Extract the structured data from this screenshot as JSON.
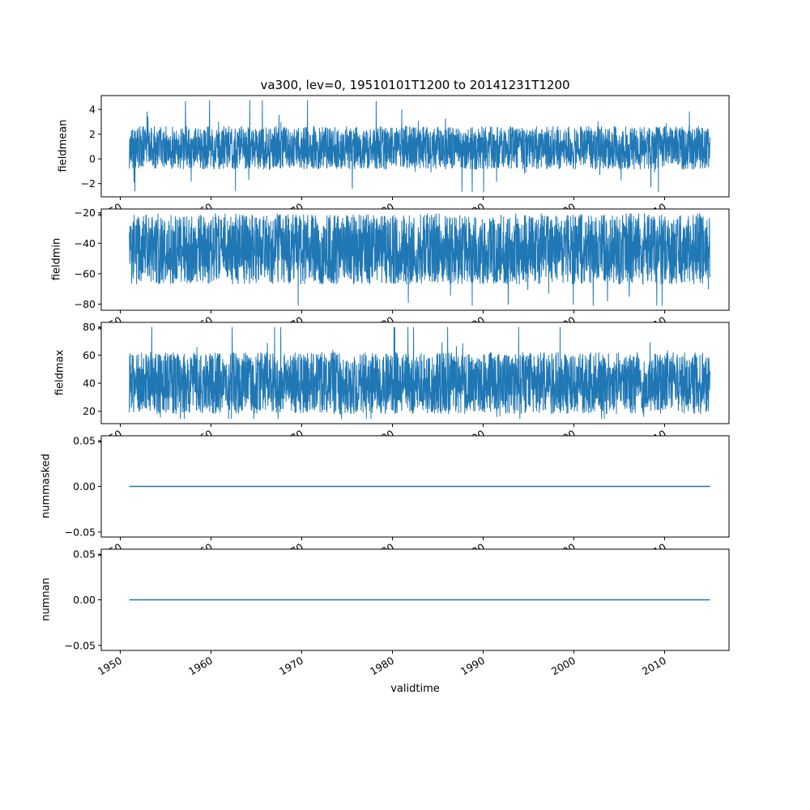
{
  "figure": {
    "title": "va300, lev=0, 19510101T1200 to 20141231T1200",
    "xlabel": "validtime",
    "line_color": "#1f77b4",
    "background": "#ffffff"
  },
  "x_axis": {
    "lim": [
      1947.9,
      2017.1
    ],
    "data_range": [
      1951.0,
      2015.0
    ],
    "ticks": [
      1950,
      1960,
      1970,
      1980,
      1990,
      2000,
      2010
    ],
    "tick_labels": [
      "1950",
      "1960",
      "1970",
      "1980",
      "1990",
      "2000",
      "2010"
    ],
    "tick_rotation_deg": 30
  },
  "chart_data": [
    {
      "type": "line",
      "ylabel": "fieldmean",
      "ylim": [
        -3.07,
        5.12
      ],
      "ytick_values": [
        4,
        2,
        0,
        -2
      ],
      "ytick_labels": [
        "4",
        "2",
        "0",
        "−2"
      ],
      "signal": {
        "kind": "noise",
        "center": 0.9,
        "band": 3.5,
        "spike_prob": 0.025,
        "clip": [
          -2.7,
          4.75
        ],
        "points": 3000
      }
    },
    {
      "type": "line",
      "ylabel": "fieldmin",
      "ylim": [
        -84.0,
        -17.5
      ],
      "ytick_values": [
        -20,
        -40,
        -60,
        -80
      ],
      "ytick_labels": [
        "−20",
        "−40",
        "−60",
        "−80"
      ],
      "signal": {
        "kind": "noise",
        "center": -44,
        "band": 46,
        "spike_prob": 0.02,
        "clip": [
          -81,
          -20.5
        ],
        "points": 3000
      }
    },
    {
      "type": "line",
      "ylabel": "fieldmax",
      "ylim": [
        11.2,
        83.3
      ],
      "ytick_values": [
        80,
        60,
        40,
        20
      ],
      "ytick_labels": [
        "80",
        "60",
        "40",
        "20"
      ],
      "signal": {
        "kind": "noise",
        "center": 40,
        "band": 44,
        "spike_prob": 0.02,
        "clip": [
          14.5,
          80
        ],
        "points": 3000
      }
    },
    {
      "type": "line",
      "ylabel": "nummasked",
      "ylim": [
        -0.0555,
        0.0555
      ],
      "ytick_values": [
        0.05,
        0.0,
        -0.05
      ],
      "ytick_labels": [
        "0.05",
        "0.00",
        "−0.05"
      ],
      "signal": {
        "kind": "constant",
        "value": 0.0
      }
    },
    {
      "type": "line",
      "ylabel": "numnan",
      "ylim": [
        -0.0555,
        0.0555
      ],
      "ytick_values": [
        0.05,
        0.0,
        -0.05
      ],
      "ytick_labels": [
        "0.05",
        "0.00",
        "−0.05"
      ],
      "signal": {
        "kind": "constant",
        "value": 0.0
      }
    }
  ]
}
